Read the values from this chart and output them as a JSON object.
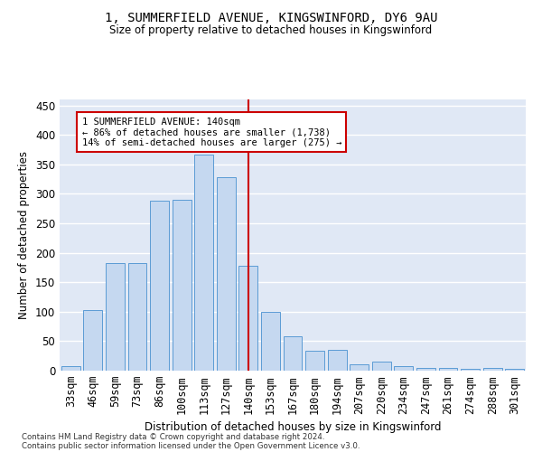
{
  "title": "1, SUMMERFIELD AVENUE, KINGSWINFORD, DY6 9AU",
  "subtitle": "Size of property relative to detached houses in Kingswinford",
  "xlabel": "Distribution of detached houses by size in Kingswinford",
  "ylabel": "Number of detached properties",
  "categories": [
    "33sqm",
    "46sqm",
    "59sqm",
    "73sqm",
    "86sqm",
    "100sqm",
    "113sqm",
    "127sqm",
    "140sqm",
    "153sqm",
    "167sqm",
    "180sqm",
    "194sqm",
    "207sqm",
    "220sqm",
    "234sqm",
    "247sqm",
    "261sqm",
    "274sqm",
    "288sqm",
    "301sqm"
  ],
  "bar_heights": [
    8,
    102,
    183,
    183,
    289,
    290,
    367,
    328,
    178,
    100,
    58,
    33,
    35,
    11,
    16,
    7,
    4,
    5,
    3,
    4,
    3
  ],
  "bar_color": "#c5d8f0",
  "bar_edge_color": "#5b9bd5",
  "vline_x": 8.5,
  "vline_color": "#cc0000",
  "annotation_title": "1 SUMMERFIELD AVENUE: 140sqm",
  "annotation_line1": "← 86% of detached houses are smaller (1,738)",
  "annotation_line2": "14% of semi-detached houses are larger (275) →",
  "annotation_box_color": "#cc0000",
  "ylim": [
    0,
    460
  ],
  "yticks": [
    0,
    50,
    100,
    150,
    200,
    250,
    300,
    350,
    400,
    450
  ],
  "background_color": "#e0e8f5",
  "grid_color": "white",
  "footer_line1": "Contains HM Land Registry data © Crown copyright and database right 2024.",
  "footer_line2": "Contains public sector information licensed under the Open Government Licence v3.0."
}
